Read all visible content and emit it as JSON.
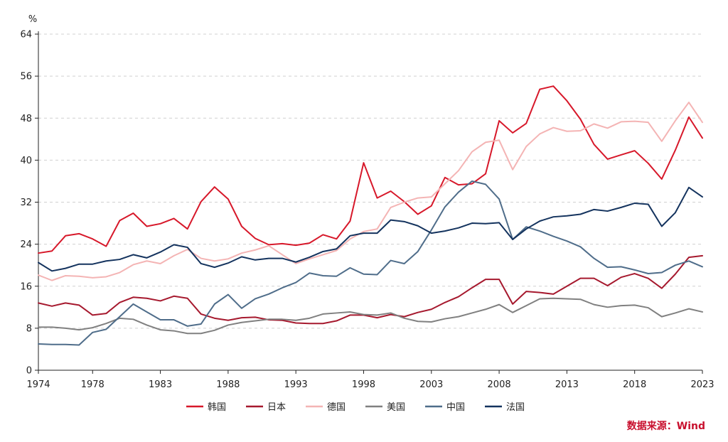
{
  "chart_data": {
    "type": "line",
    "title": "",
    "xlabel": "",
    "ylabel": "%",
    "ylim": [
      0,
      64
    ],
    "yticks": [
      0,
      8,
      16,
      24,
      32,
      40,
      48,
      56,
      64
    ],
    "xlim": [
      1974,
      2023
    ],
    "xticks": [
      1974,
      1978,
      1983,
      1988,
      1993,
      1998,
      2003,
      2008,
      2013,
      2018,
      2023
    ],
    "grid": "horizontal dashed",
    "legend": "bottom",
    "source": "数据来源：Wind",
    "x": [
      1974,
      1975,
      1976,
      1977,
      1978,
      1979,
      1980,
      1981,
      1982,
      1983,
      1984,
      1985,
      1986,
      1987,
      1988,
      1989,
      1990,
      1991,
      1992,
      1993,
      1994,
      1995,
      1996,
      1997,
      1998,
      1999,
      2000,
      2001,
      2002,
      2003,
      2004,
      2005,
      2006,
      2007,
      2008,
      2009,
      2010,
      2011,
      2012,
      2013,
      2014,
      2015,
      2016,
      2017,
      2018,
      2019,
      2020,
      2021,
      2022,
      2023
    ],
    "series": [
      {
        "name": "韩国",
        "color": "#d7182a",
        "values": [
          22.3,
          22.7,
          25.6,
          26.0,
          25.0,
          23.6,
          28.5,
          29.9,
          27.4,
          27.9,
          28.9,
          26.9,
          32.1,
          34.9,
          32.6,
          27.4,
          25.1,
          23.9,
          24.1,
          23.8,
          24.2,
          25.8,
          25.0,
          28.4,
          39.5,
          32.8,
          34.1,
          32.1,
          29.7,
          31.3,
          36.7,
          35.3,
          35.5,
          37.4,
          47.5,
          45.2,
          47.0,
          53.5,
          54.1,
          51.3,
          47.8,
          43.0,
          40.2,
          41.0,
          41.8,
          39.4,
          36.4,
          41.9,
          48.2,
          44.2
        ]
      },
      {
        "name": "日本",
        "color": "#a6192e",
        "values": [
          12.8,
          12.2,
          12.8,
          12.4,
          10.5,
          10.8,
          12.9,
          13.9,
          13.7,
          13.2,
          14.1,
          13.7,
          10.7,
          9.9,
          9.5,
          10.0,
          10.1,
          9.6,
          9.5,
          9.0,
          8.9,
          8.9,
          9.4,
          10.5,
          10.5,
          10.0,
          10.6,
          10.2,
          11.0,
          11.6,
          12.9,
          14.0,
          15.7,
          17.3,
          17.3,
          12.6,
          15.0,
          14.8,
          14.5,
          16.0,
          17.5,
          17.5,
          16.1,
          17.7,
          18.4,
          17.5,
          15.6,
          18.3,
          21.5,
          21.8
        ]
      },
      {
        "name": "德国",
        "color": "#f4b4b4",
        "values": [
          18.1,
          17.1,
          18.0,
          17.9,
          17.6,
          17.8,
          18.6,
          20.1,
          20.8,
          20.3,
          21.8,
          23.0,
          21.3,
          20.8,
          21.2,
          22.3,
          22.9,
          23.7,
          22.0,
          20.3,
          21.2,
          22.0,
          22.8,
          25.0,
          26.4,
          26.9,
          31.0,
          32.0,
          32.8,
          33.0,
          35.5,
          38.0,
          41.6,
          43.4,
          43.8,
          38.2,
          42.6,
          45.0,
          46.2,
          45.5,
          45.6,
          46.9,
          46.1,
          47.3,
          47.4,
          47.2,
          43.6,
          47.5,
          51.0,
          47.2
        ]
      },
      {
        "name": "美国",
        "color": "#808080",
        "values": [
          8.2,
          8.2,
          8.0,
          7.7,
          8.1,
          8.9,
          9.9,
          9.7,
          8.6,
          7.7,
          7.5,
          7.0,
          7.0,
          7.6,
          8.6,
          9.1,
          9.4,
          9.7,
          9.7,
          9.5,
          9.9,
          10.7,
          10.9,
          11.1,
          10.6,
          10.5,
          10.9,
          9.9,
          9.3,
          9.2,
          9.8,
          10.2,
          10.9,
          11.6,
          12.5,
          11.0,
          12.3,
          13.6,
          13.7,
          13.6,
          13.5,
          12.5,
          12.0,
          12.3,
          12.4,
          11.9,
          10.2,
          10.9,
          11.7,
          11.1
        ]
      },
      {
        "name": "中国",
        "color": "#4f6d8a",
        "values": [
          5.0,
          4.9,
          4.9,
          4.8,
          7.2,
          7.8,
          10.2,
          12.6,
          11.1,
          9.6,
          9.6,
          8.4,
          8.8,
          12.6,
          14.4,
          11.8,
          13.6,
          14.5,
          15.7,
          16.7,
          18.5,
          18.0,
          17.9,
          19.5,
          18.3,
          18.2,
          20.9,
          20.3,
          22.6,
          26.7,
          31.1,
          33.9,
          36.0,
          35.4,
          32.6,
          24.9,
          27.3,
          26.5,
          25.5,
          24.6,
          23.5,
          21.3,
          19.6,
          19.7,
          19.1,
          18.4,
          18.6,
          20.0,
          20.8,
          19.7
        ]
      },
      {
        "name": "法国",
        "color": "#14335e",
        "values": [
          20.5,
          18.9,
          19.4,
          20.2,
          20.2,
          20.8,
          21.1,
          22.0,
          21.4,
          22.5,
          23.9,
          23.4,
          20.3,
          19.6,
          20.4,
          21.6,
          21.0,
          21.3,
          21.3,
          20.6,
          21.5,
          22.6,
          23.1,
          25.6,
          26.1,
          26.1,
          28.6,
          28.3,
          27.5,
          26.1,
          26.5,
          27.1,
          28.0,
          27.9,
          28.1,
          24.9,
          26.9,
          28.4,
          29.2,
          29.4,
          29.7,
          30.6,
          30.3,
          31.0,
          31.8,
          31.6,
          27.4,
          30.0,
          34.8,
          33.0
        ]
      }
    ]
  }
}
